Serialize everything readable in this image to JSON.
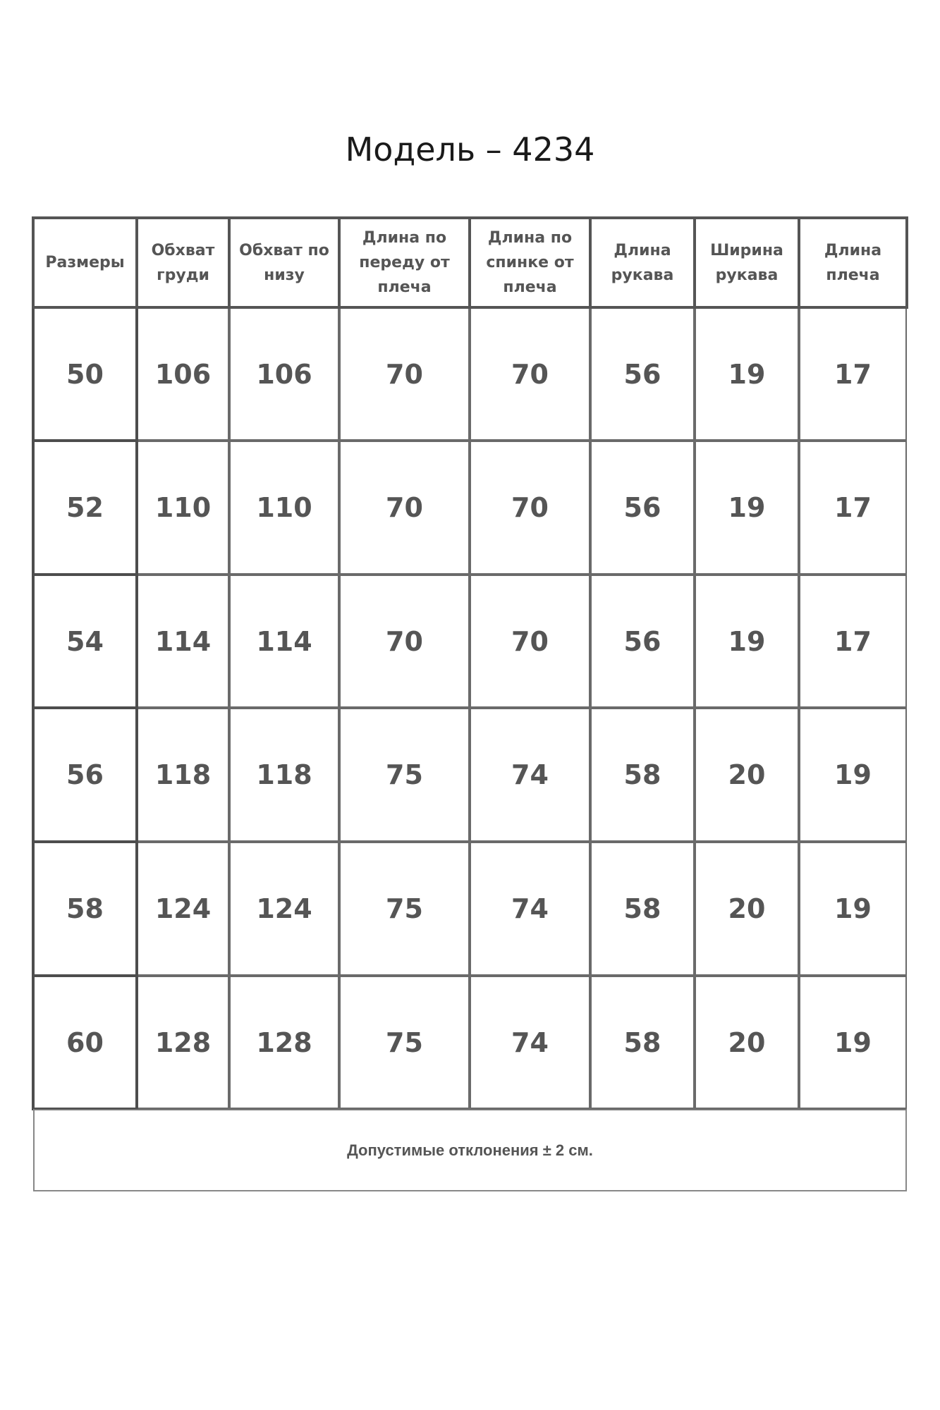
{
  "title": "Модель – 4234",
  "table": {
    "headers": [
      "Размеры",
      "Обхват груди",
      "Обхват по низу",
      "Длина по переду от плеча",
      "Длина по спинке от плеча",
      "Длина рукава",
      "Ширина рукава",
      "Длина плеча"
    ],
    "rows": [
      [
        "50",
        "106",
        "106",
        "70",
        "70",
        "56",
        "19",
        "17"
      ],
      [
        "52",
        "110",
        "110",
        "70",
        "70",
        "56",
        "19",
        "17"
      ],
      [
        "54",
        "114",
        "114",
        "70",
        "70",
        "56",
        "19",
        "17"
      ],
      [
        "56",
        "118",
        "118",
        "75",
        "74",
        "58",
        "20",
        "19"
      ],
      [
        "58",
        "124",
        "124",
        "75",
        "74",
        "58",
        "20",
        "19"
      ],
      [
        "60",
        "128",
        "128",
        "75",
        "74",
        "58",
        "20",
        "19"
      ]
    ]
  },
  "footer": "Допустимые отклонения ± 2 см."
}
